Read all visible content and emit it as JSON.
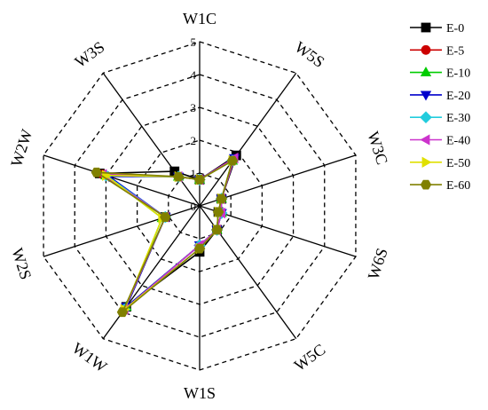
{
  "chart_data": {
    "type": "radar",
    "axes": [
      "W1C",
      "W5S",
      "W3C",
      "W6S",
      "W5C",
      "W1S",
      "W1W",
      "W2S",
      "W2W",
      "W3S"
    ],
    "rlim": [
      0,
      5
    ],
    "rticks": [
      "0",
      "1",
      "2",
      "3",
      "4",
      "5"
    ],
    "grid": "dashed decagon",
    "legend_position": "right",
    "series": [
      {
        "name": "E-0",
        "color": "#000000",
        "marker": "square",
        "values": [
          0.8,
          1.9,
          0.7,
          0.6,
          0.9,
          1.4,
          3.8,
          1.1,
          3.2,
          1.3
        ]
      },
      {
        "name": "E-5",
        "color": "#cc0000",
        "marker": "circle",
        "values": [
          0.8,
          1.7,
          0.7,
          0.6,
          0.9,
          1.2,
          3.9,
          1.1,
          3.1,
          1.1
        ]
      },
      {
        "name": "E-10",
        "color": "#00cc00",
        "marker": "triangle-up",
        "values": [
          0.8,
          1.7,
          0.7,
          0.7,
          0.9,
          1.2,
          3.8,
          1.2,
          3.0,
          1.1
        ]
      },
      {
        "name": "E-20",
        "color": "#0000cc",
        "marker": "triangle-down",
        "values": [
          0.8,
          1.8,
          0.7,
          0.7,
          0.9,
          1.2,
          3.8,
          1.1,
          2.9,
          1.1
        ]
      },
      {
        "name": "E-30",
        "color": "#22ccdd",
        "marker": "diamond",
        "values": [
          0.8,
          1.7,
          0.7,
          0.7,
          0.9,
          1.2,
          3.9,
          1.1,
          3.0,
          1.1
        ]
      },
      {
        "name": "E-40",
        "color": "#cc33cc",
        "marker": "triangle-left",
        "values": [
          0.8,
          1.8,
          0.7,
          0.7,
          0.9,
          1.2,
          3.9,
          1.1,
          3.1,
          1.1
        ]
      },
      {
        "name": "E-50",
        "color": "#e0e000",
        "marker": "triangle-right",
        "values": [
          0.8,
          1.7,
          0.7,
          0.6,
          0.9,
          1.3,
          3.9,
          1.2,
          3.0,
          1.1
        ]
      },
      {
        "name": "E-60",
        "color": "#808000",
        "marker": "hexagon",
        "values": [
          0.8,
          1.7,
          0.7,
          0.6,
          0.9,
          1.3,
          4.0,
          1.1,
          3.3,
          1.1
        ]
      }
    ]
  }
}
